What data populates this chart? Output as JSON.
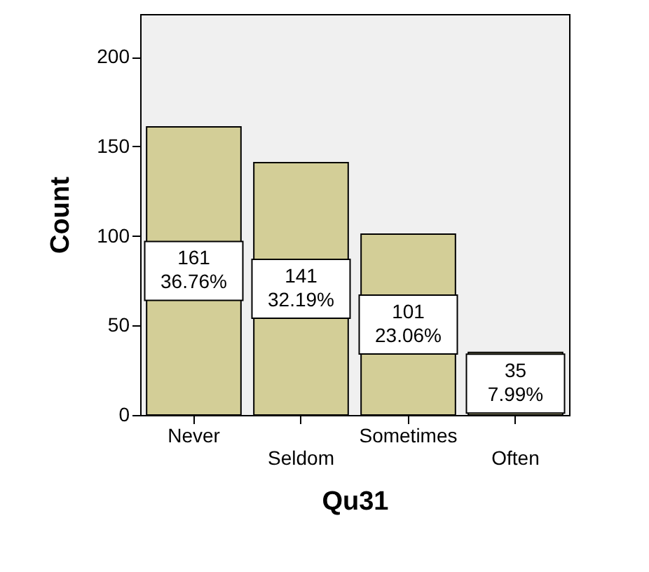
{
  "chart_data": {
    "type": "bar",
    "xlabel": "Qu31",
    "ylabel": "Count",
    "categories": [
      "Never",
      "Seldom",
      "Sometimes",
      "Often"
    ],
    "values": [
      161,
      141,
      101,
      35
    ],
    "color": "#d3ce97",
    "value_labels": [
      "161\n36.76%",
      "141\n32.19%",
      "101\n23.06%",
      "35\n7.99%"
    ],
    "ylim": [
      0,
      224
    ],
    "yticks": [
      0,
      50,
      100,
      150,
      200
    ],
    "grid": false
  }
}
